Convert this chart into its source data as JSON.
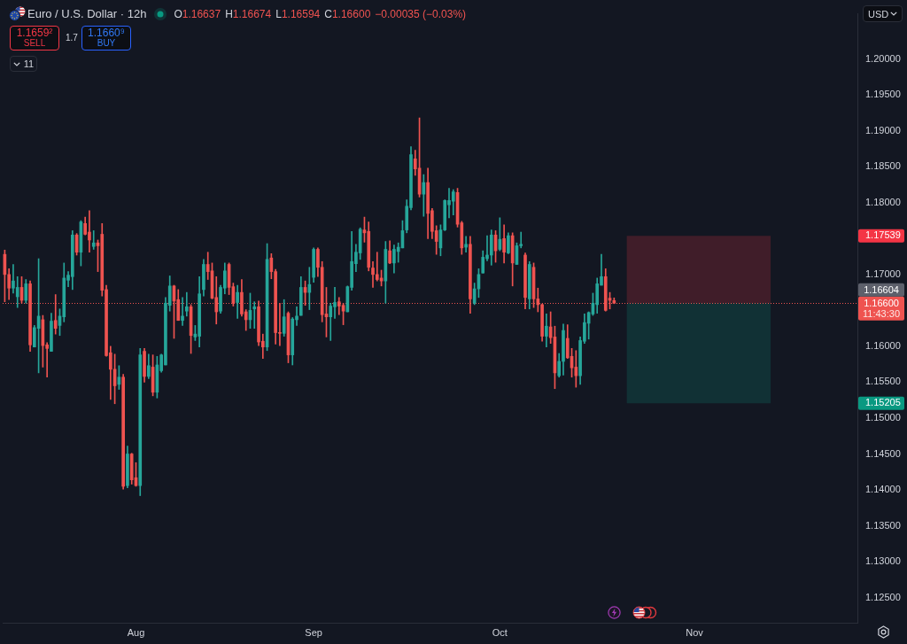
{
  "chart_data": {
    "type": "candlestick",
    "title": "Euro / U.S. Dollar · 12h",
    "categories": [
      null,
      null,
      null,
      null,
      null,
      null,
      null,
      null,
      null,
      null,
      null,
      null,
      null,
      null,
      null,
      null,
      null,
      null,
      null,
      null,
      null,
      null,
      null,
      null,
      null,
      null,
      null,
      null,
      null,
      null,
      null,
      "Aug",
      null,
      null,
      null,
      null,
      null,
      null,
      null,
      null,
      null,
      null,
      null,
      null,
      null,
      null,
      null,
      null,
      null,
      null,
      null,
      null,
      null,
      null,
      null,
      null,
      null,
      null,
      null,
      null,
      null,
      null,
      null,
      null,
      null,
      null,
      null,
      null,
      null,
      null,
      null,
      null,
      null,
      "Sep",
      null,
      null,
      null,
      null,
      null,
      null,
      null,
      null,
      null,
      null,
      null,
      null,
      null,
      null,
      null,
      null,
      null,
      null,
      null,
      null,
      null,
      null,
      null,
      null,
      null,
      null,
      null,
      null,
      null,
      null,
      null,
      null,
      null,
      null,
      null,
      null,
      null,
      null,
      null,
      null,
      null,
      null,
      null,
      "Oct",
      null,
      null,
      null,
      null,
      null,
      null,
      null,
      null,
      null,
      null,
      null,
      null,
      null,
      null,
      null,
      null,
      null,
      null,
      null,
      null,
      null,
      null,
      null,
      null,
      null,
      null,
      null,
      null,
      null,
      null,
      null,
      null,
      null,
      null,
      null,
      null,
      null,
      null,
      null,
      null,
      null,
      null,
      null,
      null,
      null,
      "Nov",
      null,
      null,
      null,
      null,
      null,
      null,
      null,
      null,
      null,
      null,
      null,
      null,
      null,
      null,
      null,
      null,
      null,
      null,
      null,
      null,
      null,
      null,
      null,
      null,
      null,
      null,
      null,
      null,
      null,
      null,
      null,
      null,
      null,
      null,
      null,
      null,
      null,
      null
    ],
    "ohlc": [
      [
        1.1728,
        1.1734,
        1.1662,
        1.17
      ],
      [
        1.17,
        1.1708,
        1.1665,
        1.1681
      ],
      [
        1.1681,
        1.1714,
        1.1674,
        1.1691
      ],
      [
        1.1669,
        1.1697,
        1.1654,
        1.1682
      ],
      [
        1.1682,
        1.1697,
        1.166,
        1.1664
      ],
      [
        1.1664,
        1.1693,
        1.166,
        1.1687
      ],
      [
        1.1687,
        1.1691,
        1.1593,
        1.1602
      ],
      [
        1.1599,
        1.1629,
        1.1599,
        1.1626
      ],
      [
        1.1625,
        1.1722,
        1.1563,
        1.1642
      ],
      [
        1.1637,
        1.1643,
        1.1571,
        1.1601
      ],
      [
        1.1602,
        1.1605,
        1.1557,
        1.1597
      ],
      [
        1.1593,
        1.1646,
        1.1593,
        1.1635
      ],
      [
        1.1636,
        1.1672,
        1.1617,
        1.1625
      ],
      [
        1.1629,
        1.1652,
        1.1615,
        1.1642
      ],
      [
        1.1641,
        1.1716,
        1.1634,
        1.1695
      ],
      [
        1.1692,
        1.1704,
        1.1683,
        1.1699
      ],
      [
        1.1697,
        1.1761,
        1.1679,
        1.1755
      ],
      [
        1.1755,
        1.1757,
        1.1727,
        1.1731
      ],
      [
        1.1731,
        1.1775,
        1.1712,
        1.1773
      ],
      [
        1.1771,
        1.178,
        1.1755,
        1.1756
      ],
      [
        1.1759,
        1.1789,
        1.1731,
        1.1748
      ],
      [
        1.1739,
        1.1761,
        1.1735,
        1.1744
      ],
      [
        1.1744,
        1.1748,
        1.1704,
        1.174
      ],
      [
        1.1756,
        1.1771,
        1.167,
        1.1678
      ],
      [
        1.1679,
        1.1685,
        1.1586,
        1.1587
      ],
      [
        1.1591,
        1.16,
        1.1526,
        1.1568
      ],
      [
        1.1568,
        1.1589,
        1.152,
        1.1545
      ],
      [
        1.1547,
        1.1573,
        1.154,
        1.1557
      ],
      [
        1.1557,
        1.1561,
        1.1401,
        1.1405
      ],
      [
        1.1406,
        1.1461,
        1.1403,
        1.145
      ],
      [
        1.145,
        1.1451,
        1.1408,
        1.1414
      ],
      [
        1.1417,
        1.1438,
        1.1405,
        1.1406
      ],
      [
        1.1406,
        1.1597,
        1.1392,
        1.1588
      ],
      [
        1.1593,
        1.1597,
        1.155,
        1.1558
      ],
      [
        1.1558,
        1.1589,
        1.1555,
        1.1573
      ],
      [
        1.1571,
        1.1588,
        1.1531,
        1.1536
      ],
      [
        1.1536,
        1.1586,
        1.1528,
        1.1574
      ],
      [
        1.1566,
        1.1589,
        1.1564,
        1.1588
      ],
      [
        1.1574,
        1.1668,
        1.1574,
        1.166
      ],
      [
        1.1657,
        1.1698,
        1.1649,
        1.1684
      ],
      [
        1.1684,
        1.1685,
        1.1611,
        1.1663
      ],
      [
        1.1665,
        1.1679,
        1.1636,
        1.1636
      ],
      [
        1.1636,
        1.1668,
        1.1629,
        1.1642
      ],
      [
        1.1649,
        1.1675,
        1.1642,
        1.1655
      ],
      [
        1.1655,
        1.1658,
        1.159,
        1.1615
      ],
      [
        1.1613,
        1.1629,
        1.1608,
        1.1617
      ],
      [
        1.1614,
        1.1697,
        1.1599,
        1.1673
      ],
      [
        1.1679,
        1.1721,
        1.167,
        1.1714
      ],
      [
        1.1714,
        1.1731,
        1.1693,
        1.1704
      ],
      [
        1.1705,
        1.1716,
        1.1666,
        1.1667
      ],
      [
        1.1668,
        1.1697,
        1.1631,
        1.1648
      ],
      [
        1.1649,
        1.1685,
        1.1646,
        1.1682
      ],
      [
        1.1681,
        1.1716,
        1.1673,
        1.1705
      ],
      [
        1.1714,
        1.1716,
        1.1672,
        1.1682
      ],
      [
        1.1683,
        1.1688,
        1.1656,
        1.166
      ],
      [
        1.1661,
        1.1685,
        1.1639,
        1.1675
      ],
      [
        1.1675,
        1.1693,
        1.1642,
        1.1645
      ],
      [
        1.1648,
        1.1651,
        1.1622,
        1.1637
      ],
      [
        1.1637,
        1.1674,
        1.1625,
        1.165
      ],
      [
        1.1652,
        1.1662,
        1.1625,
        1.1655
      ],
      [
        1.1655,
        1.1663,
        1.1601,
        1.1606
      ],
      [
        1.1607,
        1.1617,
        1.1583,
        1.1599
      ],
      [
        1.1599,
        1.1743,
        1.1594,
        1.1721
      ],
      [
        1.1723,
        1.1729,
        1.1694,
        1.1704
      ],
      [
        1.1704,
        1.1707,
        1.1603,
        1.1619
      ],
      [
        1.1619,
        1.166,
        1.1601,
        1.1618
      ],
      [
        1.1618,
        1.1665,
        1.1614,
        1.1641
      ],
      [
        1.1646,
        1.1648,
        1.1577,
        1.1588
      ],
      [
        1.1588,
        1.164,
        1.1574,
        1.1638
      ],
      [
        1.1637,
        1.1655,
        1.1629,
        1.1642
      ],
      [
        1.1643,
        1.1697,
        1.1643,
        1.1682
      ],
      [
        1.1682,
        1.1691,
        1.1657,
        1.1675
      ],
      [
        1.1675,
        1.171,
        1.1651,
        1.1686
      ],
      [
        1.1696,
        1.1737,
        1.1689,
        1.1735
      ],
      [
        1.1735,
        1.1737,
        1.1697,
        1.171
      ],
      [
        1.171,
        1.1718,
        1.1634,
        1.1644
      ],
      [
        1.1645,
        1.1682,
        1.1613,
        1.1641
      ],
      [
        1.1641,
        1.166,
        1.1608,
        1.1656
      ],
      [
        1.1655,
        1.1682,
        1.1639,
        1.1661
      ],
      [
        1.1662,
        1.1668,
        1.1644,
        1.1656
      ],
      [
        1.1657,
        1.166,
        1.163,
        1.1649
      ],
      [
        1.1648,
        1.1684,
        1.1648,
        1.1683
      ],
      [
        1.1682,
        1.176,
        1.1678,
        1.1718
      ],
      [
        1.1715,
        1.1742,
        1.1704,
        1.1731
      ],
      [
        1.173,
        1.1765,
        1.1721,
        1.1763
      ],
      [
        1.1762,
        1.178,
        1.1745,
        1.1758
      ],
      [
        1.176,
        1.1773,
        1.1705,
        1.171
      ],
      [
        1.1709,
        1.1718,
        1.1682,
        1.17
      ],
      [
        1.17,
        1.1731,
        1.1691,
        1.1693
      ],
      [
        1.1695,
        1.1706,
        1.1684,
        1.1691
      ],
      [
        1.1691,
        1.1746,
        1.166,
        1.1735
      ],
      [
        1.1733,
        1.1747,
        1.1715,
        1.1716
      ],
      [
        1.1716,
        1.1741,
        1.1702,
        1.1735
      ],
      [
        1.1732,
        1.1744,
        1.1717,
        1.1738
      ],
      [
        1.1737,
        1.1775,
        1.1737,
        1.1761
      ],
      [
        1.1762,
        1.1804,
        1.1758,
        1.1795
      ],
      [
        1.1793,
        1.1878,
        1.179,
        1.1867
      ],
      [
        1.1861,
        1.1873,
        1.1838,
        1.1847
      ],
      [
        1.1848,
        1.1918,
        1.1808,
        1.1812
      ],
      [
        1.1812,
        1.1839,
        1.1781,
        1.1828
      ],
      [
        1.1828,
        1.1848,
        1.175,
        1.1785
      ],
      [
        1.1789,
        1.1792,
        1.175,
        1.176
      ],
      [
        1.1761,
        1.1768,
        1.1728,
        1.1746
      ],
      [
        1.1737,
        1.1769,
        1.1726,
        1.1762
      ],
      [
        1.1762,
        1.1804,
        1.1761,
        1.1803
      ],
      [
        1.1797,
        1.182,
        1.1779,
        1.1803
      ],
      [
        1.1802,
        1.1818,
        1.1783,
        1.1815
      ],
      [
        1.1814,
        1.182,
        1.1766,
        1.177
      ],
      [
        1.1772,
        1.1774,
        1.1728,
        1.1737
      ],
      [
        1.1738,
        1.1753,
        1.1731,
        1.1742
      ],
      [
        1.1742,
        1.1753,
        1.1646,
        1.1666
      ],
      [
        1.166,
        1.1688,
        1.1658,
        1.168
      ],
      [
        1.168,
        1.1708,
        1.1668,
        1.17
      ],
      [
        1.1702,
        1.1733,
        1.1702,
        1.1724
      ],
      [
        1.1722,
        1.1754,
        1.1719,
        1.1727
      ],
      [
        1.1727,
        1.1762,
        1.1713,
        1.1755
      ],
      [
        1.1755,
        1.1761,
        1.1717,
        1.1733
      ],
      [
        1.1735,
        1.1779,
        1.1733,
        1.1749
      ],
      [
        1.175,
        1.1769,
        1.1716,
        1.1731
      ],
      [
        1.173,
        1.1758,
        1.1729,
        1.1754
      ],
      [
        1.1754,
        1.1758,
        1.1684,
        1.1716
      ],
      [
        1.1714,
        1.1744,
        1.1714,
        1.174
      ],
      [
        1.174,
        1.1759,
        1.1737,
        1.1742
      ],
      [
        1.1727,
        1.173,
        1.1652,
        1.1668
      ],
      [
        1.1666,
        1.1718,
        1.1652,
        1.1714
      ],
      [
        1.171,
        1.1716,
        1.1654,
        1.1666
      ],
      [
        1.1666,
        1.1681,
        1.1648,
        1.1658
      ],
      [
        1.1658,
        1.1659,
        1.1607,
        1.1614
      ],
      [
        1.1614,
        1.1645,
        1.1599,
        1.1628
      ],
      [
        1.1627,
        1.1648,
        1.1604,
        1.1612
      ],
      [
        1.1613,
        1.1628,
        1.1541,
        1.1563
      ],
      [
        1.1559,
        1.159,
        1.1557,
        1.1579
      ],
      [
        1.1579,
        1.1631,
        1.156,
        1.1622
      ],
      [
        1.1611,
        1.163,
        1.1583,
        1.1584
      ],
      [
        1.1586,
        1.1597,
        1.1557,
        1.157
      ],
      [
        1.1571,
        1.1594,
        1.1543,
        1.1559
      ],
      [
        1.1559,
        1.1613,
        1.1547,
        1.1608
      ],
      [
        1.1607,
        1.1645,
        1.1604,
        1.1633
      ],
      [
        1.1632,
        1.1648,
        1.161,
        1.1647
      ],
      [
        1.1645,
        1.1674,
        1.1643,
        1.166
      ],
      [
        1.1658,
        1.1695,
        1.1646,
        1.1687
      ],
      [
        1.1685,
        1.1728,
        1.1685,
        1.1697
      ],
      [
        1.1697,
        1.1708,
        1.1649,
        1.165
      ],
      [
        1.1667,
        1.1675,
        1.1652,
        1.1664
      ],
      [
        1.16637,
        1.16674,
        1.16594,
        1.166
      ],
      null,
      null,
      null,
      null,
      null,
      null,
      null,
      null,
      null,
      null,
      null,
      null,
      null,
      null,
      null,
      null,
      null,
      null,
      null,
      null,
      null,
      null,
      null,
      null,
      null,
      null,
      null,
      null,
      null,
      null,
      null,
      null,
      null,
      null,
      null,
      null,
      null,
      null,
      null,
      null,
      null,
      null,
      null,
      null,
      null,
      null,
      null,
      null,
      null,
      null,
      null,
      null,
      null,
      null,
      null,
      null,
      null
    ],
    "colors": [
      "#ef5350",
      "#ef5350",
      "#26a69a",
      "#26a69a",
      "#ef5350",
      "#26a69a",
      "#ef5350",
      "#26a69a",
      "#26a69a",
      "#ef5350",
      "#ef5350",
      "#26a69a",
      "#ef5350",
      "#26a69a",
      "#26a69a",
      "#26a69a",
      "#26a69a",
      "#ef5350",
      "#26a69a",
      "#ef5350",
      "#ef5350",
      "#26a69a",
      "#ef5350",
      "#ef5350",
      "#ef5350",
      "#ef5350",
      "#ef5350",
      "#26a69a",
      "#ef5350",
      "#26a69a",
      "#ef5350",
      "#ef5350",
      "#26a69a",
      "#ef5350",
      "#26a69a",
      "#ef5350",
      "#26a69a",
      "#26a69a",
      "#26a69a",
      "#26a69a",
      "#ef5350",
      "#ef5350",
      "#26a69a",
      "#26a69a",
      "#ef5350",
      "#26a69a",
      "#26a69a",
      "#26a69a",
      "#ef5350",
      "#ef5350",
      "#ef5350",
      "#26a69a",
      "#26a69a",
      "#ef5350",
      "#ef5350",
      "#26a69a",
      "#ef5350",
      "#ef5350",
      "#26a69a",
      "#26a69a",
      "#ef5350",
      "#ef5350",
      "#26a69a",
      "#ef5350",
      "#ef5350",
      "#ef5350",
      "#26a69a",
      "#ef5350",
      "#26a69a",
      "#26a69a",
      "#26a69a",
      "#ef5350",
      "#26a69a",
      "#26a69a",
      "#ef5350",
      "#ef5350",
      "#ef5350",
      "#26a69a",
      "#26a69a",
      "#ef5350",
      "#ef5350",
      "#26a69a",
      "#26a69a",
      "#26a69a",
      "#26a69a",
      "#ef5350",
      "#ef5350",
      "#ef5350",
      "#ef5350",
      "#ef5350",
      "#26a69a",
      "#ef5350",
      "#26a69a",
      "#26a69a",
      "#26a69a",
      "#26a69a",
      "#26a69a",
      "#ef5350",
      "#ef5350",
      "#26a69a",
      "#ef5350",
      "#ef5350",
      "#ef5350",
      "#26a69a",
      "#26a69a",
      "#26a69a",
      "#26a69a",
      "#ef5350",
      "#ef5350",
      "#26a69a",
      "#ef5350",
      "#26a69a",
      "#26a69a",
      "#26a69a",
      "#26a69a",
      "#26a69a",
      "#ef5350",
      "#26a69a",
      "#ef5350",
      "#26a69a",
      "#ef5350",
      "#26a69a",
      "#26a69a",
      "#ef5350",
      "#26a69a",
      "#ef5350",
      "#ef5350",
      "#ef5350",
      "#26a69a",
      "#ef5350",
      "#ef5350",
      "#26a69a",
      "#26a69a",
      "#ef5350",
      "#ef5350",
      "#ef5350",
      "#26a69a",
      "#26a69a",
      "#26a69a",
      "#26a69a",
      "#26a69a",
      "#26a69a",
      "#ef5350",
      "#ef5350",
      "#ef5350",
      null,
      null,
      null,
      null,
      null,
      null,
      null,
      null,
      null,
      null,
      null,
      null,
      null,
      null,
      null,
      null,
      null,
      null,
      null,
      null,
      null,
      null,
      null,
      null,
      null,
      null,
      null,
      null,
      null,
      null,
      null,
      null,
      null,
      null,
      null,
      null,
      null,
      null,
      null,
      null,
      null,
      null,
      null,
      null,
      null,
      null,
      null,
      null,
      null,
      null,
      null,
      null,
      null,
      null,
      null,
      null,
      null
    ],
    "ylim": [
      1.1215,
      1.2063
    ],
    "yticks": [
      {
        "value": 1.125,
        "label": "1.12500"
      },
      {
        "value": 1.13,
        "label": "1.13000"
      },
      {
        "value": 1.135,
        "label": "1.13500"
      },
      {
        "value": 1.14,
        "label": "1.14000"
      },
      {
        "value": 1.145,
        "label": "1.14500"
      },
      {
        "value": 1.15,
        "label": "1.15000"
      },
      1.15205,
      {
        "value": 1.155,
        "label": "1.15500"
      },
      {
        "value": 1.16,
        "label": "1.16000"
      },
      {
        "value": 1.17,
        "label": "1.17000"
      },
      1.17539,
      {
        "value": 1.18,
        "label": "1.18000"
      },
      {
        "value": 1.185,
        "label": "1.18500"
      },
      {
        "value": 1.19,
        "label": "1.19000"
      },
      {
        "value": 1.195,
        "label": "1.19500"
      },
      {
        "value": 1.2,
        "label": "1.20000"
      }
    ],
    "bands": [
      {
        "axis": "y",
        "from": 1.16604,
        "to": 1.17539,
        "color": "#401d29"
      },
      {
        "axis": "y",
        "from": 1.16604,
        "to": 1.15205,
        "color": "#113135"
      }
    ],
    "ref_lines": [
      {
        "axis": "y",
        "value": 1.166,
        "label": "1.16600",
        "color": "#ef5350",
        "line_style": "dotted"
      }
    ],
    "annotations": [
      "O1.16637",
      "H1.16674",
      "L1.16594",
      "C1.16600",
      "−0.00035 (−0.03%)",
      "1.1659²",
      "SELL",
      "1.7",
      "1.1660⁹",
      "BUY",
      "11",
      "USD",
      "1.16604",
      "11:43:30"
    ]
  }
}
